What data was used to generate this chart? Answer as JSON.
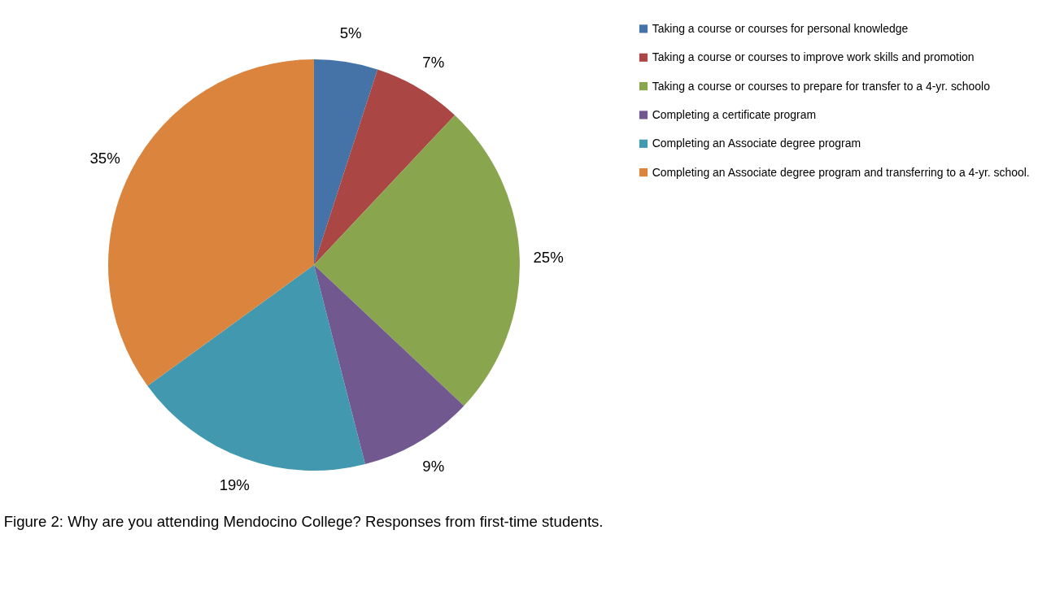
{
  "chart_data": {
    "type": "pie",
    "categories": [
      "Taking a course or courses for personal knowledge",
      "Taking a course or courses to improve work skills and promotion",
      "Taking a course or courses to prepare for transfer to a 4-yr. schoolo",
      "Completing a certificate program",
      "Completing  an Associate degree program",
      "Completing  an Associate degree program and transferring to a 4-yr. school."
    ],
    "values": [
      5,
      7,
      25,
      9,
      19,
      35
    ],
    "colors": [
      "#4572a7",
      "#aa4643",
      "#89a54e",
      "#71588f",
      "#4198af",
      "#db843d"
    ],
    "value_labels": [
      "5%",
      "7%",
      "25%",
      "9%",
      "19%",
      "35%"
    ],
    "legend": "right",
    "annotations": [
      "Figure 2:  Why are you attending Mendocino College?  Responses from first-time students."
    ]
  }
}
